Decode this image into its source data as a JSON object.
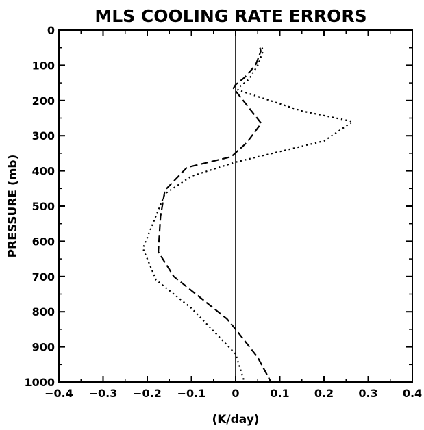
{
  "chart_data": {
    "type": "line",
    "title": "MLS COOLING RATE ERRORS",
    "xlabel": "(K/day)",
    "ylabel": "PRESSURE  (mb)",
    "xlim": [
      -0.4,
      0.4
    ],
    "ylim": [
      0,
      1000
    ],
    "y_inverted": true,
    "grid": false,
    "legend": "none",
    "x_ticks": [
      -0.4,
      -0.3,
      -0.2,
      -0.1,
      0,
      0.1,
      0.2,
      0.3,
      0.4
    ],
    "x_tick_labels": [
      "-0.4",
      "-0.3",
      "-0.2",
      "-0.1",
      "0",
      "0.1",
      "0.2",
      "0.3",
      "0.4"
    ],
    "y_ticks": [
      0,
      100,
      200,
      300,
      400,
      500,
      600,
      700,
      800,
      900,
      1000
    ],
    "y_tick_labels": [
      "0",
      "100",
      "200",
      "300",
      "400",
      "500",
      "600",
      "700",
      "800",
      "900",
      "1000"
    ],
    "reference_line_x": 0,
    "series": [
      {
        "style": "dashed",
        "x": [
          0.055,
          0.057,
          0.045,
          0.02,
          0.0,
          -0.005,
          0.058,
          0.025,
          -0.01,
          -0.11,
          -0.16,
          -0.17,
          -0.175,
          -0.14,
          -0.02,
          0.0,
          0.05,
          0.08
        ],
        "y": [
          50,
          60,
          100,
          135,
          155,
          165,
          265,
          320,
          360,
          390,
          455,
          530,
          630,
          700,
          820,
          850,
          930,
          1000
        ]
      },
      {
        "style": "dotted",
        "x": [
          0.06,
          0.062,
          0.05,
          0.03,
          0.01,
          0.005,
          0.15,
          0.265,
          0.2,
          0.0,
          -0.1,
          -0.16,
          -0.21,
          -0.18,
          -0.1,
          0.0,
          0.02
        ],
        "y": [
          50,
          60,
          100,
          140,
          160,
          170,
          230,
          260,
          315,
          375,
          415,
          465,
          620,
          710,
          790,
          920,
          1000
        ]
      }
    ]
  }
}
